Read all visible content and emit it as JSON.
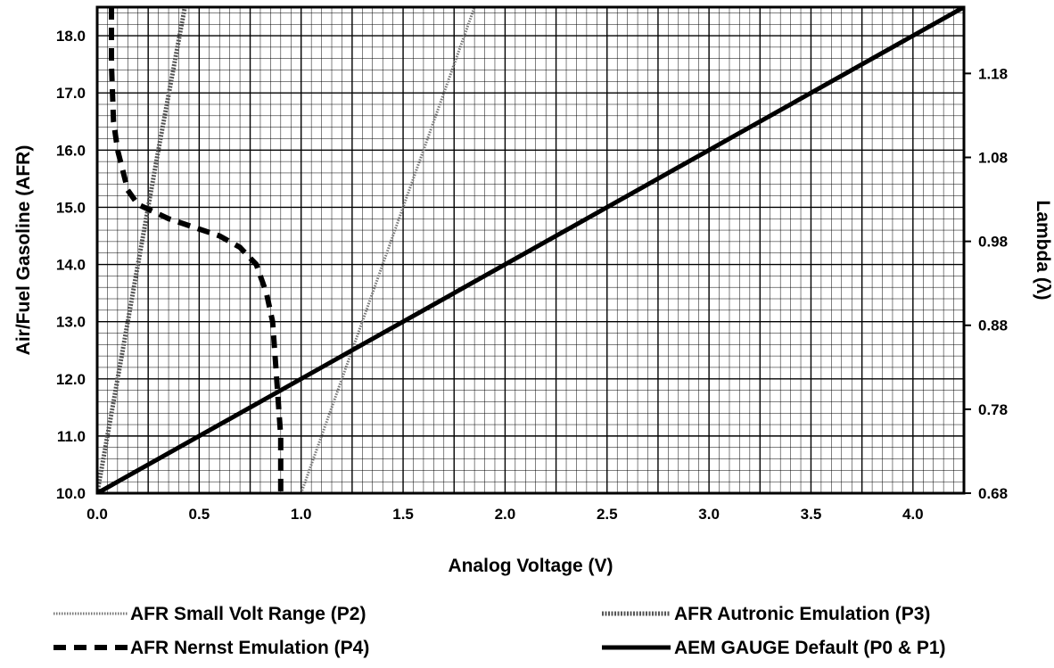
{
  "chart_data": {
    "type": "line",
    "xlabel": "Analog Voltage (V)",
    "ylabel": "Air/Fuel Gasoline (AFR)",
    "y2label": "Lambda (λ)",
    "xlim": [
      0,
      4.25
    ],
    "ylim": [
      10.0,
      18.5
    ],
    "y2lim": [
      0.68,
      1.259
    ],
    "grid": true,
    "x_ticks": [
      "0.0",
      "0.5",
      "1.0",
      "1.5",
      "2.0",
      "2.5",
      "3.0",
      "3.5",
      "4.0"
    ],
    "y_ticks": [
      "10.0",
      "11.0",
      "12.0",
      "13.0",
      "14.0",
      "15.0",
      "16.0",
      "17.0",
      "18.0"
    ],
    "y2_ticks": [
      "0.68",
      "0.78",
      "0.88",
      "0.98",
      "1.08",
      "1.18"
    ],
    "legend_position": "bottom",
    "series": [
      {
        "name": "AFR Small Volt Range (P2)",
        "style": "dotted",
        "x": [
          1.0,
          1.85
        ],
        "y": [
          10.0,
          18.5
        ]
      },
      {
        "name": "AFR Autronic Emulation (P3)",
        "style": "double-dotted",
        "x": [
          0.0,
          0.1,
          0.2,
          0.3,
          0.43
        ],
        "y": [
          10.0,
          12.0,
          14.0,
          16.0,
          18.5
        ]
      },
      {
        "name": "AFR Nernst Emulation (P4)",
        "style": "dashed",
        "x": [
          0.07,
          0.07,
          0.08,
          0.1,
          0.15,
          0.2,
          0.35,
          0.6,
          0.7,
          0.78,
          0.83,
          0.86,
          0.88,
          0.89,
          0.9,
          0.9
        ],
        "y": [
          18.5,
          17.5,
          16.5,
          16.0,
          15.3,
          15.05,
          14.8,
          14.5,
          14.3,
          14.0,
          13.5,
          13.0,
          12.0,
          11.5,
          11.0,
          10.0
        ]
      },
      {
        "name": "AEM GAUGE Default (P0 & P1)",
        "style": "solid",
        "x": [
          0.0,
          4.25
        ],
        "y": [
          10.0,
          18.5
        ]
      }
    ]
  }
}
